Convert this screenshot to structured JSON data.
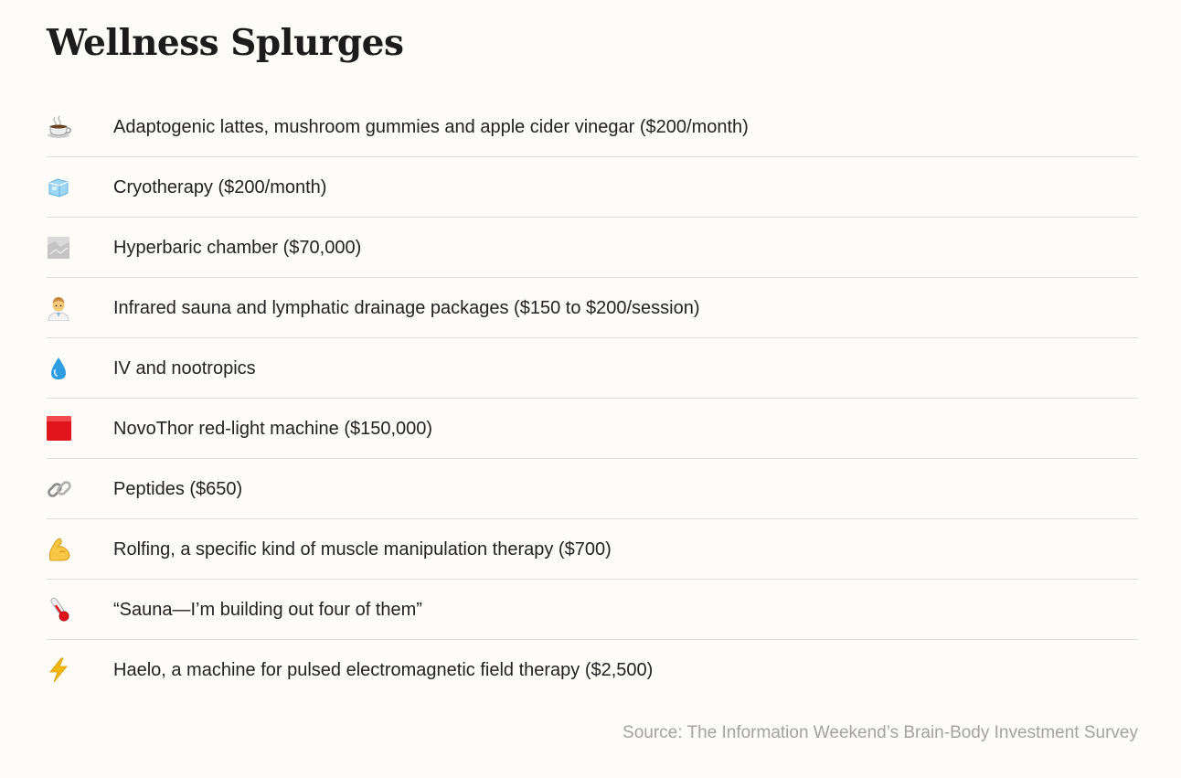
{
  "title": "Wellness Splurges",
  "items": [
    {
      "icon": "coffee-cup-icon",
      "label": "Adaptogenic lattes, mushroom gummies and apple cider vinegar ($200/month)"
    },
    {
      "icon": "ice-cube-icon",
      "label": "Cryotherapy ($200/month)"
    },
    {
      "icon": "rock-icon",
      "label": "Hyperbaric chamber ($70,000)"
    },
    {
      "icon": "health-worker-icon",
      "label": "Infrared sauna and lymphatic drainage packages ($150 to $200/session)"
    },
    {
      "icon": "droplet-icon",
      "label": "IV and nootropics"
    },
    {
      "icon": "red-square-icon",
      "label": "NovoThor red-light machine ($150,000)"
    },
    {
      "icon": "link-icon",
      "label": "Peptides ($650)"
    },
    {
      "icon": "flexed-biceps-icon",
      "label": "Rolfing, a specific kind of muscle manipulation therapy ($700)"
    },
    {
      "icon": "thermometer-icon",
      "label": "“Sauna—I’m building out four of them”"
    },
    {
      "icon": "lightning-bolt-icon",
      "label": "Haelo, a machine for pulsed electromagnetic field therapy ($2,500)"
    }
  ],
  "source": "Source: The Information Weekend’s Brain-Body Investment Survey",
  "colors": {
    "background": "#fdfcf9",
    "text": "#222222",
    "divider": "#dcdcd8",
    "source_text": "#a2a2a2",
    "red_square": "#e0141a",
    "droplet": "#2f9be0",
    "bolt": "#f5b800"
  }
}
